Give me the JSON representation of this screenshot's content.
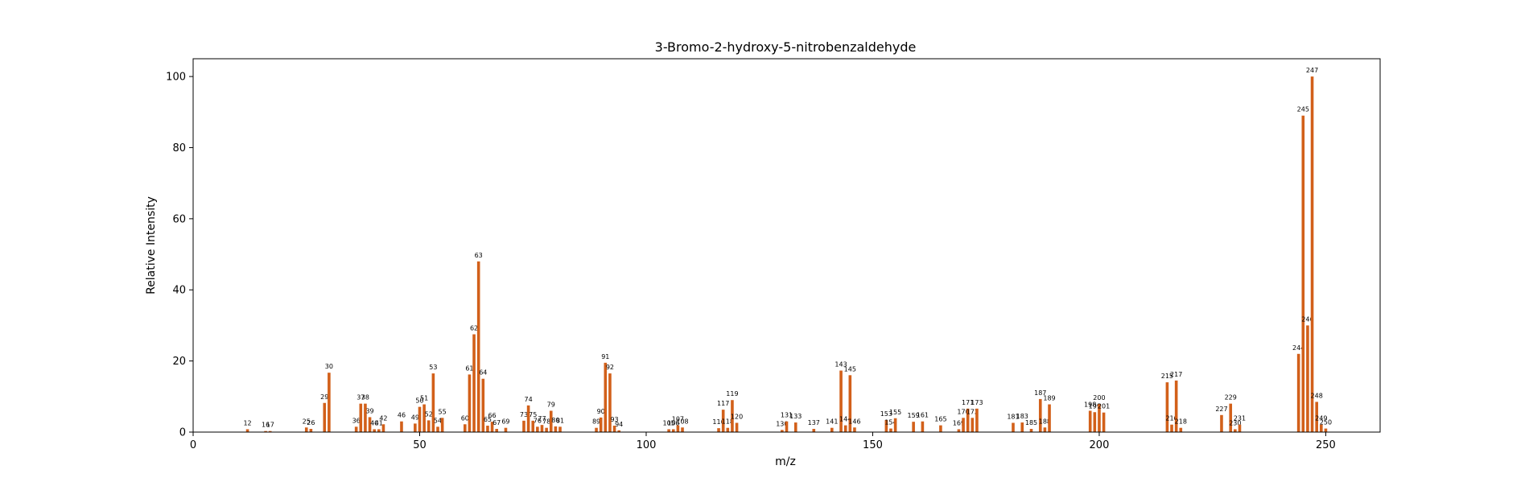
{
  "chart_data": {
    "type": "bar",
    "title": "3-Bromo-2-hydroxy-5-nitrobenzaldehyde",
    "xlabel": "m/z",
    "ylabel": "Relative Intensity",
    "xlim": [
      0,
      262
    ],
    "ylim": [
      0,
      105
    ],
    "xticks": [
      0,
      50,
      100,
      150,
      200,
      250
    ],
    "yticks": [
      0,
      20,
      40,
      60,
      80,
      100
    ],
    "grid": false,
    "bar_color": "#d2601a",
    "x": [
      12,
      16,
      17,
      25,
      26,
      29,
      30,
      36,
      37,
      38,
      39,
      40,
      41,
      42,
      46,
      49,
      50,
      51,
      52,
      53,
      54,
      55,
      60,
      61,
      62,
      63,
      64,
      65,
      66,
      67,
      69,
      73,
      74,
      75,
      76,
      77,
      78,
      79,
      80,
      81,
      89,
      90,
      91,
      92,
      93,
      94,
      105,
      106,
      107,
      108,
      116,
      117,
      118,
      119,
      120,
      130,
      131,
      133,
      137,
      141,
      143,
      144,
      145,
      146,
      153,
      154,
      155,
      159,
      161,
      165,
      169,
      170,
      171,
      172,
      173,
      181,
      183,
      185,
      187,
      188,
      189,
      198,
      199,
      200,
      201,
      215,
      216,
      217,
      218,
      227,
      229,
      230,
      231,
      244,
      245,
      246,
      247,
      248,
      249,
      250
    ],
    "values": [
      0.8,
      0.3,
      0.3,
      1.3,
      0.9,
      8.2,
      16.7,
      1.5,
      8.0,
      8.0,
      4.2,
      0.8,
      0.8,
      2.2,
      3.0,
      2.4,
      7.1,
      7.8,
      3.3,
      16.5,
      1.5,
      4.0,
      2.2,
      16.2,
      27.5,
      48.0,
      15.0,
      1.8,
      2.9,
      0.9,
      1.2,
      3.2,
      7.5,
      3.2,
      1.5,
      2.0,
      1.2,
      6.0,
      1.6,
      1.5,
      1.2,
      4.1,
      19.5,
      16.5,
      1.8,
      0.5,
      0.8,
      0.8,
      1.9,
      1.3,
      1.1,
      6.3,
      1.2,
      9.0,
      2.6,
      0.6,
      3.0,
      2.7,
      0.9,
      1.2,
      17.3,
      1.9,
      16.0,
      1.3,
      3.4,
      1.0,
      3.9,
      2.9,
      3.0,
      1.9,
      0.8,
      4.0,
      6.6,
      4.0,
      6.6,
      2.6,
      2.7,
      0.9,
      9.3,
      1.3,
      7.8,
      6.0,
      5.6,
      7.9,
      5.5,
      14.0,
      2.1,
      14.5,
      1.2,
      4.8,
      8.0,
      0.8,
      2.1,
      22.0,
      89.0,
      30.0,
      100.0,
      8.5,
      2.1,
      1.0
    ]
  }
}
